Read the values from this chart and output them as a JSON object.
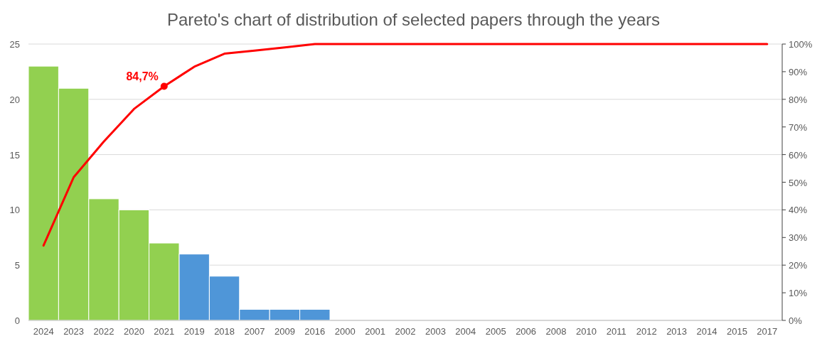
{
  "chart_data": {
    "type": "bar",
    "title": "Pareto's chart of distribution of selected papers through the years",
    "categories": [
      "2024",
      "2023",
      "2022",
      "2020",
      "2021",
      "2019",
      "2018",
      "2007",
      "2009",
      "2016",
      "2000",
      "2001",
      "2002",
      "2003",
      "2004",
      "2005",
      "2006",
      "2008",
      "2010",
      "2011",
      "2012",
      "2013",
      "2014",
      "2015",
      "2017"
    ],
    "series": [
      {
        "values": [
          23,
          21,
          11,
          10,
          7,
          6,
          4,
          1,
          1,
          1,
          0,
          0,
          0,
          0,
          0,
          0,
          0,
          0,
          0,
          0,
          0,
          0,
          0,
          0,
          0
        ],
        "colors": [
          "#92d050",
          "#92d050",
          "#92d050",
          "#92d050",
          "#92d050",
          "#4f96d8",
          "#4f96d8",
          "#4f96d8",
          "#4f96d8",
          "#4f96d8",
          "#4f96d8",
          "#4f96d8",
          "#4f96d8",
          "#4f96d8",
          "#4f96d8",
          "#4f96d8",
          "#4f96d8",
          "#4f96d8",
          "#4f96d8",
          "#4f96d8",
          "#4f96d8",
          "#4f96d8",
          "#4f96d8",
          "#4f96d8",
          "#4f96d8"
        ]
      },
      {
        "type": "line",
        "axis": "y2",
        "color": "#ff0000",
        "values": [
          27.1,
          51.8,
          64.7,
          76.5,
          84.7,
          91.8,
          96.5,
          97.6,
          98.8,
          100,
          100,
          100,
          100,
          100,
          100,
          100,
          100,
          100,
          100,
          100,
          100,
          100,
          100,
          100,
          100
        ],
        "value_labels": [
          null,
          null,
          null,
          null,
          "84,7%",
          null,
          null,
          null,
          null,
          null,
          null,
          null,
          null,
          null,
          null,
          null,
          null,
          null,
          null,
          null,
          null,
          null,
          null,
          null,
          null
        ]
      }
    ],
    "ylim": [
      0,
      25
    ],
    "yticks": [
      0,
      5,
      10,
      15,
      20,
      25
    ],
    "y2lim": [
      0,
      100
    ],
    "y2ticks": [
      {
        "value": 0,
        "label": "0%"
      },
      {
        "value": 10,
        "label": "10%"
      },
      {
        "value": 20,
        "label": "20%"
      },
      {
        "value": 30,
        "label": "30%"
      },
      {
        "value": 40,
        "label": "40%"
      },
      {
        "value": 50,
        "label": "50%"
      },
      {
        "value": 60,
        "label": "60%"
      },
      {
        "value": 70,
        "label": "70%"
      },
      {
        "value": 80,
        "label": "80%"
      },
      {
        "value": 90,
        "label": "90%"
      },
      {
        "value": 100,
        "label": "100%"
      }
    ],
    "grid": "y"
  }
}
